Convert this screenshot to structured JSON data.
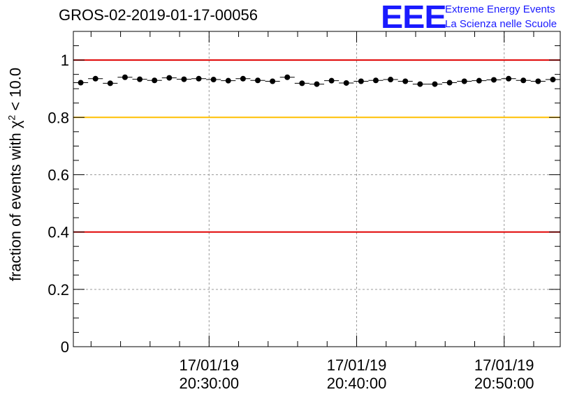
{
  "chart_data": {
    "type": "scatter",
    "title": "GROS-02-2019-01-17-00056",
    "ylabel_prefix": "fraction of events with ",
    "ylabel_chi": "χ",
    "ylabel_sup": "2",
    "ylabel_suffix": " < 10.0",
    "xlabel": "",
    "ylim": [
      0,
      1.1
    ],
    "xlim_minutes": [
      20.8,
      53.8
    ],
    "yticks": [
      0,
      0.2,
      0.4,
      0.6,
      0.8,
      1
    ],
    "ytick_labels": [
      "0",
      "0.2",
      "0.4",
      "0.6",
      "0.8",
      "1"
    ],
    "xticks_minutes": [
      30,
      40,
      50
    ],
    "xtick_labels": [
      {
        "date": "17/01/19",
        "time": "20:30:00"
      },
      {
        "date": "17/01/19",
        "time": "20:40:00"
      },
      {
        "date": "17/01/19",
        "time": "20:50:00"
      }
    ],
    "grid": true,
    "reference_lines": [
      {
        "y": 1.0,
        "color": "#e00000"
      },
      {
        "y": 0.8,
        "color": "#ffbf00"
      },
      {
        "y": 0.4,
        "color": "#e00000"
      }
    ],
    "x_minutes": [
      21.3,
      22.3,
      23.3,
      24.3,
      25.3,
      26.3,
      27.3,
      28.3,
      29.3,
      30.3,
      31.3,
      32.3,
      33.3,
      34.3,
      35.3,
      36.3,
      37.3,
      38.3,
      39.3,
      40.3,
      41.3,
      42.3,
      43.3,
      44.3,
      45.3,
      46.3,
      47.3,
      48.3,
      49.3,
      50.3,
      51.3,
      52.3,
      53.3
    ],
    "values": [
      0.921,
      0.935,
      0.919,
      0.94,
      0.933,
      0.929,
      0.938,
      0.933,
      0.935,
      0.932,
      0.928,
      0.935,
      0.929,
      0.926,
      0.94,
      0.919,
      0.916,
      0.928,
      0.92,
      0.926,
      0.929,
      0.932,
      0.926,
      0.916,
      0.916,
      0.921,
      0.926,
      0.928,
      0.931,
      0.935,
      0.929,
      0.926,
      0.932
    ],
    "bin_half_width_minutes": 0.5
  },
  "logo": {
    "mark": "EEE",
    "line1": "Extreme Energy Events",
    "line2": "La Scienza nelle Scuole",
    "color": "#1a1aff"
  }
}
